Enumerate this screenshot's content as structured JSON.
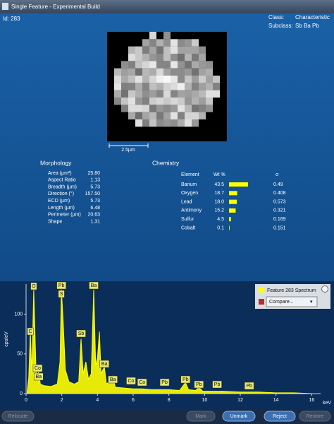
{
  "window": {
    "title": "Single Feature - Experimental Build"
  },
  "header": {
    "id": "Id: 283",
    "class_label": "Class:",
    "class_value": "Characteristic",
    "subclass_label": "Subclass:",
    "subclass_value": "Sb Ba Pb"
  },
  "image": {
    "scale_bar": "2.5µm"
  },
  "morphology": {
    "title": "Morphology",
    "rows": [
      [
        "Area (µm²)",
        "25.80"
      ],
      [
        "Aspect Ratio",
        "1.13"
      ],
      [
        "Breadth (µm)",
        "5.73"
      ],
      [
        "Direction (°)",
        "157.50"
      ],
      [
        "ECD (µm)",
        "5.73"
      ],
      [
        "Length (µm)",
        "6.48"
      ],
      [
        "Perimeter (µm)",
        "20.63"
      ],
      [
        "Shape",
        "1.31"
      ]
    ]
  },
  "chemistry": {
    "title": "Chemistry",
    "headers": [
      "Element",
      "Wt %",
      "σ"
    ],
    "elements": [
      "Barium",
      "Oxygen",
      "Lead",
      "Antimony",
      "Sulfur",
      "Cobalt"
    ],
    "wt_values": [
      43.5,
      18.7,
      18.0,
      15.2,
      4.5,
      0.1
    ],
    "wt_value_labels": [
      "43.5",
      "18.7",
      "18.0",
      "15.2",
      "4.5",
      "0.1"
    ],
    "sigma": [
      0.49,
      0.408,
      0.573,
      0.321,
      0.169,
      0.151
    ],
    "bar_color": "#ffff00"
  },
  "chart_data": {
    "type": "area",
    "y_label": "cps/eV",
    "x_label": "keV",
    "xlim": [
      0,
      16.5
    ],
    "ylim": [
      0,
      138
    ],
    "xticks": [
      0,
      2,
      4,
      6,
      8,
      10,
      12,
      14,
      16
    ],
    "yticks": [
      0,
      50,
      100
    ],
    "series": [
      {
        "name": "Feature 283 Spectrum",
        "color": "#ffff00",
        "x": [
          0.05,
          0.15,
          0.24,
          0.32,
          0.43,
          0.55,
          0.65,
          0.7,
          0.8,
          1.0,
          1.4,
          1.75,
          1.9,
          1.98,
          2.08,
          2.2,
          2.4,
          2.7,
          2.95,
          3.08,
          3.2,
          3.35,
          3.5,
          3.65,
          3.79,
          3.9,
          4.0,
          4.11,
          4.2,
          4.3,
          4.39,
          4.5,
          4.65,
          4.86,
          5.0,
          5.5,
          6.0,
          6.5,
          7.0,
          7.5,
          8.0,
          8.6,
          8.93,
          9.1,
          9.5,
          9.68,
          9.9,
          10.6,
          11.0,
          12.0,
          13.0,
          14.0,
          15.0,
          16.0
        ],
        "values": [
          0,
          20,
          78,
          25,
          131,
          35,
          18,
          28,
          12,
          10,
          9,
          12,
          40,
          131,
          90,
          30,
          15,
          12,
          15,
          69,
          25,
          40,
          18,
          25,
          131,
          35,
          45,
          78,
          25,
          30,
          33,
          12,
          15,
          22,
          8,
          7,
          6,
          6,
          5,
          5,
          5,
          4,
          14,
          5,
          4,
          8,
          3,
          3,
          3,
          2,
          2,
          1,
          1,
          0
        ]
      }
    ],
    "annotations": [
      {
        "text": "O",
        "x": 0.43
      },
      {
        "text": "Pb",
        "x": 1.98
      },
      {
        "text": "S",
        "x": 1.98
      },
      {
        "text": "Ba",
        "x": 3.79
      },
      {
        "text": "C",
        "x": 0.24
      },
      {
        "text": "Sb",
        "x": 3.08
      },
      {
        "text": "Ba",
        "x": 4.39
      },
      {
        "text": "Co",
        "x": 0.65
      },
      {
        "text": "Ba",
        "x": 0.7
      },
      {
        "text": "Ba",
        "x": 4.86
      },
      {
        "text": "Co",
        "x": 5.88
      },
      {
        "text": "Co",
        "x": 6.5
      },
      {
        "text": "Pb",
        "x": 7.76
      },
      {
        "text": "Pb",
        "x": 8.93
      },
      {
        "text": "Pb",
        "x": 9.68
      },
      {
        "text": "Pb",
        "x": 10.7
      },
      {
        "text": "Pb",
        "x": 12.5
      }
    ],
    "compare_label": "Compare..."
  },
  "buttons": [
    "Relocate",
    "Mark",
    "Unmark",
    "Reject",
    "Restore"
  ]
}
